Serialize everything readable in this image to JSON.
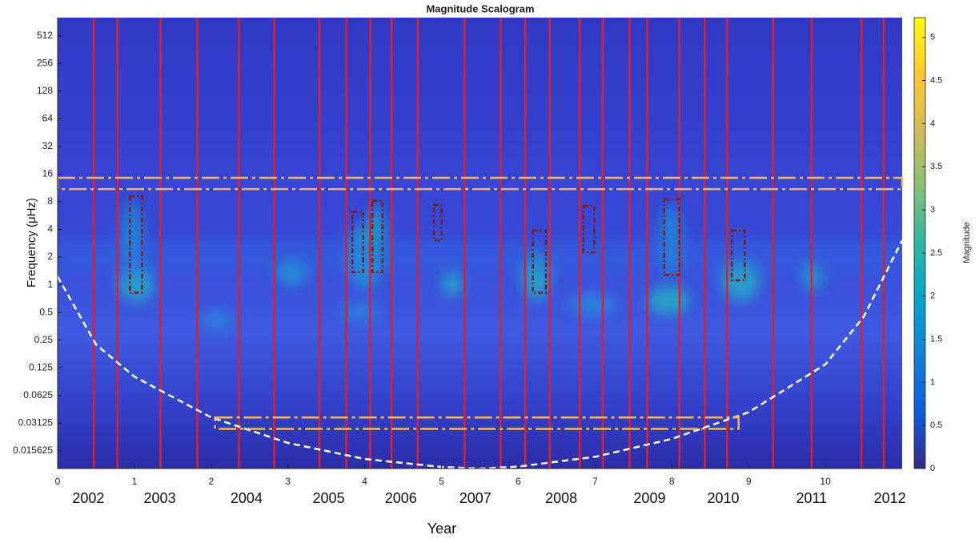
{
  "chart_data": {
    "type": "scalogram",
    "title": "Magnitude Scalogram",
    "xlabel": "Year",
    "ylabel": "Frequency (μHz)",
    "xlim": [
      0,
      11
    ],
    "ylim": [
      0.01,
      810
    ],
    "log_y": true,
    "xticks": [
      0,
      1,
      2,
      3,
      4,
      5,
      6,
      7,
      8,
      9,
      10
    ],
    "yticks": [
      512,
      256,
      128,
      64,
      32,
      16,
      8,
      4,
      2,
      1,
      0.5,
      0.25,
      0.125,
      0.0625,
      0.03125,
      0.015625
    ],
    "x2ticks": [
      {
        "value": 0.4,
        "label": "2002"
      },
      {
        "value": 1.33,
        "label": "2003"
      },
      {
        "value": 2.46,
        "label": "2004"
      },
      {
        "value": 3.53,
        "label": "2005"
      },
      {
        "value": 4.47,
        "label": "2006"
      },
      {
        "value": 5.44,
        "label": "2007"
      },
      {
        "value": 6.56,
        "label": "2008"
      },
      {
        "value": 7.71,
        "label": "2009"
      },
      {
        "value": 8.67,
        "label": "2010"
      },
      {
        "value": 9.82,
        "label": "2011"
      },
      {
        "value": 10.84,
        "label": "2012"
      }
    ],
    "colorbar": {
      "label": "Magnitude",
      "lim": [
        0,
        5.23
      ],
      "ticks": [
        0,
        0.5,
        1,
        1.5,
        2,
        2.5,
        3,
        3.5,
        4,
        4.5,
        5
      ],
      "colors": [
        "#352a87",
        "#0f5cdd",
        "#1481d6",
        "#06a4ca",
        "#2eb7a4",
        "#87bf77",
        "#d1bb59",
        "#fec832",
        "#f9fb0e"
      ]
    },
    "vertical_lines": {
      "color": "#e0202a",
      "x": [
        0.47,
        0.78,
        1.34,
        1.82,
        2.36,
        2.82,
        3.41,
        3.76,
        4.07,
        4.35,
        4.69,
        5.3,
        5.77,
        6.09,
        6.41,
        6.8,
        7.1,
        7.45,
        7.68,
        8.1,
        8.43,
        8.72,
        9.32,
        9.82,
        10.47,
        10.76
      ]
    },
    "bands": [
      {
        "x": [
          0,
          11
        ],
        "y": [
          11,
          14.6
        ],
        "color": "#f2b766"
      },
      {
        "x": [
          2.05,
          8.87
        ],
        "y": [
          0.027,
          0.036
        ],
        "color": "#f2b766"
      }
    ],
    "boxes": {
      "color": "#7a1f1f",
      "items": [
        {
          "x": [
            0.94,
            1.1
          ],
          "y": [
            0.82,
            9.2
          ]
        },
        {
          "x": [
            3.84,
            3.98
          ],
          "y": [
            1.37,
            6.2
          ]
        },
        {
          "x": [
            4.1,
            4.23
          ],
          "y": [
            1.37,
            8.2
          ]
        },
        {
          "x": [
            4.9,
            5.0
          ],
          "y": [
            3.05,
            7.4
          ]
        },
        {
          "x": [
            6.19,
            6.36
          ],
          "y": [
            0.82,
            3.9
          ]
        },
        {
          "x": [
            6.85,
            6.99
          ],
          "y": [
            2.25,
            7.2
          ]
        },
        {
          "x": [
            7.9,
            8.1
          ],
          "y": [
            1.28,
            8.5
          ]
        },
        {
          "x": [
            8.78,
            8.95
          ],
          "y": [
            1.12,
            3.9
          ]
        }
      ]
    },
    "coi": {
      "color": "#ffffff",
      "x": [
        0,
        0.5,
        1,
        2,
        3,
        4,
        5,
        5.5,
        6,
        7,
        8,
        9,
        10,
        10.5,
        11
      ],
      "y": [
        1.23,
        0.224,
        0.1,
        0.036,
        0.019,
        0.0127,
        0.0104,
        0.01,
        0.0105,
        0.0134,
        0.021,
        0.041,
        0.136,
        0.45,
        3.05
      ]
    }
  }
}
